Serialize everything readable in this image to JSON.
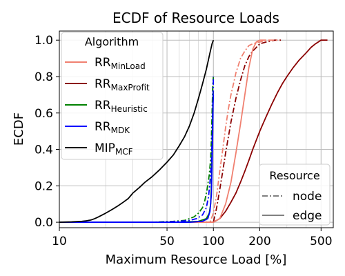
{
  "chart_data": {
    "type": "line",
    "title": "ECDF of Resource Loads",
    "xlabel": "Maximum Resource Load [%]",
    "ylabel": "ECDF",
    "x_scale": "log",
    "xlim": [
      10,
      600
    ],
    "ylim": [
      -0.03,
      1.05
    ],
    "x_ticks": [
      10,
      50,
      100,
      200,
      500
    ],
    "x_tick_labels": [
      "10",
      "50",
      "100",
      "200",
      "500"
    ],
    "y_ticks": [
      0.0,
      0.2,
      0.4,
      0.6,
      0.8,
      1.0
    ],
    "y_tick_labels": [
      "0.0",
      "0.2",
      "0.4",
      "0.6",
      "0.8",
      "1.0"
    ],
    "grid": true,
    "legend_algorithm": {
      "title": "Algorithm",
      "placement": "top-left",
      "entries": [
        {
          "base": "RR",
          "sub": "MinLoad",
          "color": "#f08070"
        },
        {
          "base": "RR",
          "sub": "MaxProfit",
          "color": "#8b0000"
        },
        {
          "base": "RR",
          "sub": "Heuristic",
          "color": "#008000"
        },
        {
          "base": "RR",
          "sub": "MDK",
          "color": "#0000ff"
        },
        {
          "base": "MIP",
          "sub": "MCF",
          "color": "#000000"
        }
      ]
    },
    "legend_resource": {
      "title": "Resource",
      "placement": "bottom-right",
      "entries": [
        {
          "label": "node",
          "style": "dashdot",
          "color": "#808080"
        },
        {
          "label": "edge",
          "style": "solid",
          "color": "#808080"
        }
      ]
    },
    "series": [
      {
        "algorithm": "MinLoad",
        "resource": "node",
        "color": "#f08070",
        "style": "dashdot",
        "x": [
          10,
          95,
          100,
          105,
          110,
          115,
          120,
          125,
          130,
          135,
          140,
          145,
          150,
          160,
          170,
          180,
          200,
          220,
          250,
          270
        ],
        "y": [
          0,
          0,
          0.05,
          0.15,
          0.28,
          0.4,
          0.52,
          0.62,
          0.7,
          0.76,
          0.82,
          0.86,
          0.9,
          0.94,
          0.97,
          0.98,
          0.99,
          1.0,
          1.0,
          1.0
        ]
      },
      {
        "algorithm": "MinLoad",
        "resource": "edge",
        "color": "#f08070",
        "style": "solid",
        "x": [
          10,
          100,
          110,
          120,
          130,
          140,
          150,
          160,
          170,
          180,
          190,
          200,
          220
        ],
        "y": [
          0,
          0,
          0.02,
          0.1,
          0.22,
          0.38,
          0.54,
          0.7,
          0.85,
          0.95,
          0.99,
          1.0,
          1.0
        ]
      },
      {
        "algorithm": "MaxProfit",
        "resource": "node",
        "color": "#8b0000",
        "style": "dashdot",
        "x": [
          10,
          100,
          105,
          110,
          115,
          120,
          130,
          140,
          150,
          160,
          170,
          180,
          190,
          200,
          220,
          250,
          280
        ],
        "y": [
          0,
          0,
          0.08,
          0.18,
          0.28,
          0.38,
          0.55,
          0.68,
          0.78,
          0.86,
          0.91,
          0.94,
          0.96,
          0.98,
          0.99,
          1.0,
          1.0
        ]
      },
      {
        "algorithm": "MaxProfit",
        "resource": "edge",
        "color": "#8b0000",
        "style": "solid",
        "x": [
          10,
          100,
          110,
          120,
          130,
          140,
          150,
          160,
          170,
          180,
          200,
          220,
          240,
          260,
          280,
          300,
          330,
          360,
          400,
          430,
          460,
          500,
          550
        ],
        "y": [
          0,
          0,
          0.02,
          0.06,
          0.11,
          0.16,
          0.22,
          0.28,
          0.34,
          0.4,
          0.5,
          0.58,
          0.65,
          0.71,
          0.76,
          0.8,
          0.85,
          0.89,
          0.93,
          0.96,
          0.98,
          1.0,
          1.0
        ]
      },
      {
        "algorithm": "Heuristic",
        "resource": "node",
        "color": "#008000",
        "style": "dashdot",
        "x": [
          10,
          40,
          55,
          65,
          70,
          75,
          80,
          85,
          88,
          91,
          94,
          96,
          97,
          98,
          99,
          100
        ],
        "y": [
          0,
          0,
          0.005,
          0.01,
          0.02,
          0.03,
          0.05,
          0.08,
          0.12,
          0.18,
          0.26,
          0.35,
          0.45,
          0.6,
          0.75,
          0.8
        ]
      },
      {
        "algorithm": "Heuristic",
        "resource": "edge",
        "color": "#008000",
        "style": "solid",
        "x": [
          10,
          60,
          80,
          90,
          94,
          96,
          97,
          98,
          99,
          99.5,
          100
        ],
        "y": [
          0,
          0,
          0.005,
          0.02,
          0.05,
          0.1,
          0.2,
          0.4,
          0.6,
          0.7,
          0.72
        ]
      },
      {
        "algorithm": "MDK",
        "resource": "node",
        "color": "#0000ff",
        "style": "dashdot",
        "x": [
          10,
          45,
          60,
          70,
          78,
          85,
          90,
          93,
          95,
          97,
          98,
          99,
          100
        ],
        "y": [
          0,
          0,
          0.005,
          0.01,
          0.02,
          0.04,
          0.08,
          0.14,
          0.22,
          0.32,
          0.45,
          0.6,
          0.8
        ]
      },
      {
        "algorithm": "MDK",
        "resource": "edge",
        "color": "#0000ff",
        "style": "solid",
        "x": [
          10,
          70,
          85,
          92,
          95,
          97,
          98,
          99,
          99.5,
          100
        ],
        "y": [
          0,
          0,
          0.005,
          0.02,
          0.06,
          0.15,
          0.3,
          0.5,
          0.65,
          0.7
        ]
      },
      {
        "algorithm": "MCF",
        "resource": "edge",
        "color": "#000000",
        "style": "solid",
        "x": [
          10,
          12,
          14,
          15,
          16,
          17,
          18,
          20,
          22,
          24,
          26,
          28,
          30,
          33,
          36,
          40,
          45,
          50,
          55,
          60,
          65,
          70,
          75,
          80,
          85,
          90,
          95,
          98,
          100
        ],
        "y": [
          0,
          0.002,
          0.005,
          0.008,
          0.012,
          0.02,
          0.03,
          0.05,
          0.07,
          0.09,
          0.11,
          0.13,
          0.16,
          0.19,
          0.22,
          0.25,
          0.29,
          0.33,
          0.37,
          0.42,
          0.47,
          0.53,
          0.6,
          0.68,
          0.76,
          0.84,
          0.93,
          0.98,
          1.0
        ]
      }
    ]
  }
}
